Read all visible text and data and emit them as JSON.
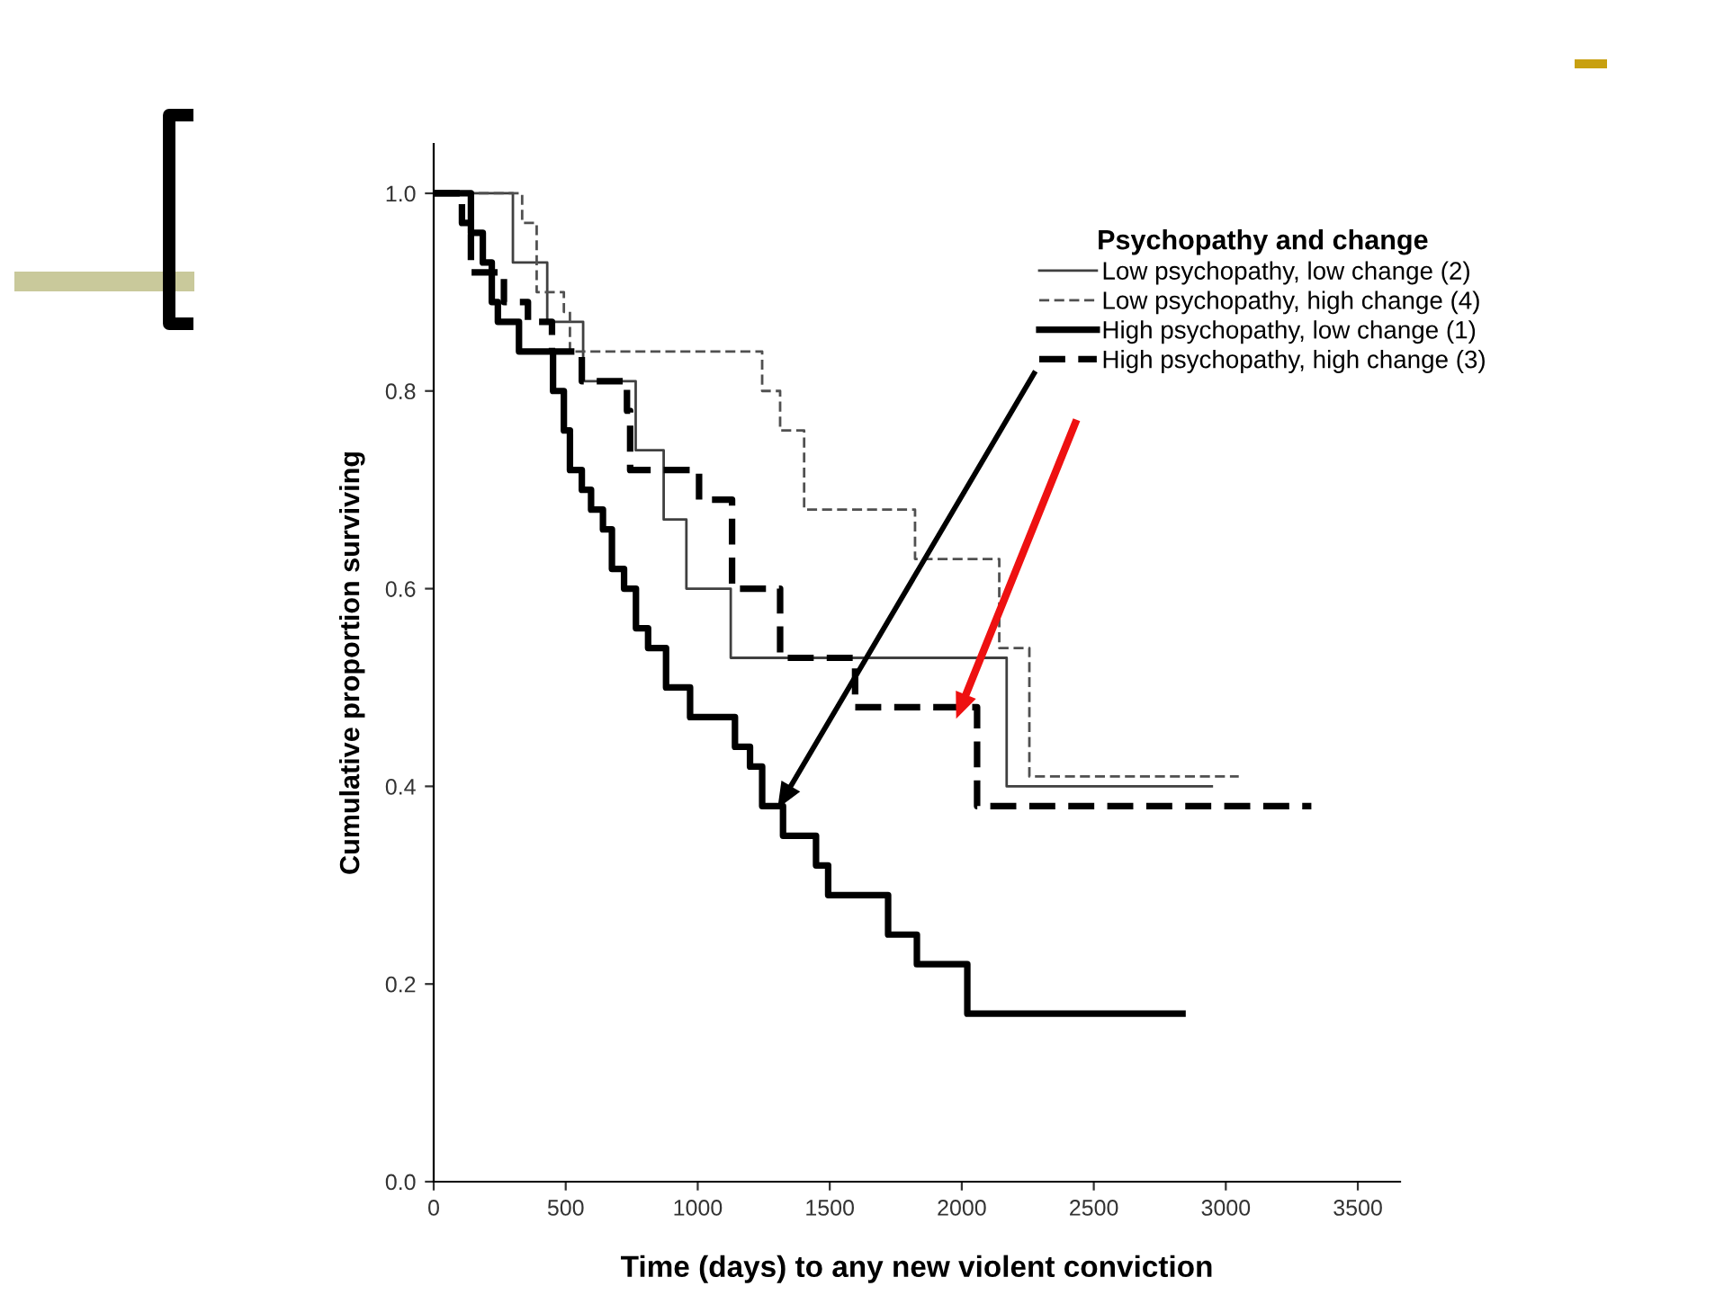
{
  "chart_data": {
    "type": "step",
    "xlabel": "Time (days) to any new violent conviction",
    "ylabel": "Cumulative proportion surviving",
    "legend_title": "Psychopathy and change",
    "legend": "top right",
    "xlim": [
      0,
      3660
    ],
    "ylim": [
      0,
      1.05
    ],
    "xticks": [
      0,
      500,
      1000,
      1500,
      2000,
      2500,
      3000,
      3500
    ],
    "yticks": [
      {
        "value": 0,
        "label": "0.0"
      },
      {
        "value": 0.2,
        "label": "0.2"
      },
      {
        "value": 0.4,
        "label": "0.4"
      },
      {
        "value": 0.6,
        "label": "0.6"
      },
      {
        "value": 0.8,
        "label": "0.8"
      },
      {
        "value": 1.0,
        "label": "1.0"
      }
    ],
    "grid": false,
    "marker": "none",
    "series": [
      {
        "name": "Low psychopathy, low change (2)",
        "color": "#404040",
        "line_style": "solid",
        "x": [
          0,
          300,
          430,
          566,
          765,
          871,
          957,
          1125,
          2170,
          2947
        ],
        "values": [
          1.0,
          0.93,
          0.87,
          0.81,
          0.74,
          0.67,
          0.6,
          0.53,
          0.4,
          0.4
        ]
      },
      {
        "name": "Low psychopathy, high change (4)",
        "color": "#505050",
        "line_style": "dashed",
        "x": [
          0,
          335,
          390,
          493,
          516,
          1244,
          1312,
          1403,
          1823,
          2142,
          2256,
          3049
        ],
        "values": [
          1.0,
          0.97,
          0.9,
          0.88,
          0.84,
          0.8,
          0.76,
          0.68,
          0.63,
          0.54,
          0.41,
          0.41
        ]
      },
      {
        "name": "High psychopathy, low change (1)",
        "color": "#000000",
        "line_style": "solid",
        "x": [
          0,
          141,
          186,
          220,
          243,
          323,
          452,
          493,
          516,
          561,
          596,
          641,
          675,
          721,
          766,
          812,
          880,
          971,
          1141,
          1198,
          1244,
          1323,
          1448,
          1494,
          1721,
          1830,
          2021,
          2836
        ],
        "values": [
          1.0,
          0.96,
          0.93,
          0.89,
          0.87,
          0.84,
          0.8,
          0.76,
          0.72,
          0.7,
          0.68,
          0.66,
          0.62,
          0.6,
          0.56,
          0.54,
          0.5,
          0.47,
          0.44,
          0.42,
          0.38,
          0.35,
          0.32,
          0.29,
          0.25,
          0.22,
          0.17,
          0.17
        ]
      },
      {
        "name": "High psychopathy, high change (3)",
        "color": "#000000",
        "line_style": "dashed",
        "x": [
          0,
          107,
          141,
          266,
          357,
          448,
          561,
          732,
          744,
          1005,
          1130,
          1312,
          1596,
          2058,
          3324
        ],
        "values": [
          1.0,
          0.97,
          0.92,
          0.89,
          0.87,
          0.84,
          0.81,
          0.78,
          0.72,
          0.69,
          0.6,
          0.53,
          0.48,
          0.38,
          0.38
        ]
      }
    ]
  }
}
